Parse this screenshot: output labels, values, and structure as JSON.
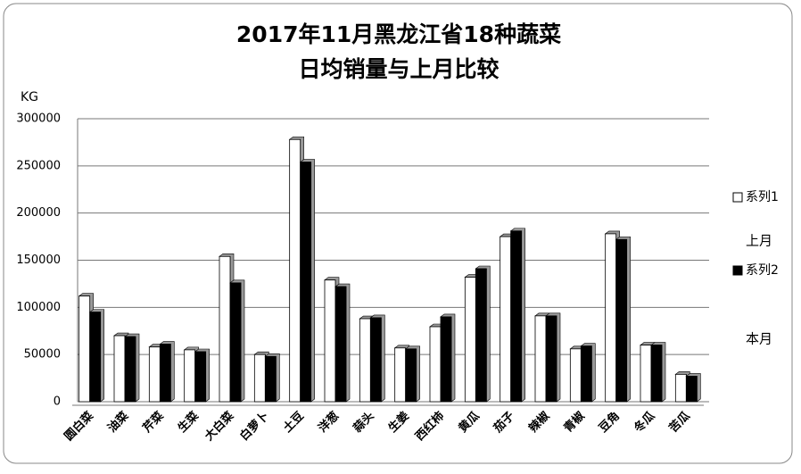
{
  "chart_data": {
    "type": "bar",
    "title": [
      "2017年11月黑龙江省18种蔬菜",
      "日均销量与上月比较"
    ],
    "y_label": "KG",
    "categories": [
      "圆白菜",
      "油菜",
      "芹菜",
      "生菜",
      "大白菜",
      "白萝卜",
      "土豆",
      "洋葱",
      "蒜头",
      "生姜",
      "西红柿",
      "黄瓜",
      "茄子",
      "辣椒",
      "青椒",
      "豆角",
      "冬瓜",
      "苦瓜"
    ],
    "series": [
      {
        "name": "系列1",
        "color": "#ffffff",
        "values": [
          112000,
          70000,
          58000,
          55000,
          154000,
          50000,
          278000,
          129000,
          88000,
          57000,
          79500,
          132000,
          175000,
          91000,
          56000,
          178000,
          60000,
          29000
        ]
      },
      {
        "name": "系列2",
        "color": "#000000",
        "values": [
          95000,
          69000,
          61000,
          53000,
          126000,
          48000,
          254000,
          122000,
          89000,
          56000,
          90000,
          141000,
          181000,
          91000,
          59000,
          172000,
          60000,
          27000
        ]
      }
    ],
    "annotations": [
      "上月",
      "本月"
    ],
    "ylim": [
      0,
      300000
    ],
    "yticks": [
      0,
      50000,
      100000,
      150000,
      200000,
      250000,
      300000
    ],
    "grid": true
  }
}
